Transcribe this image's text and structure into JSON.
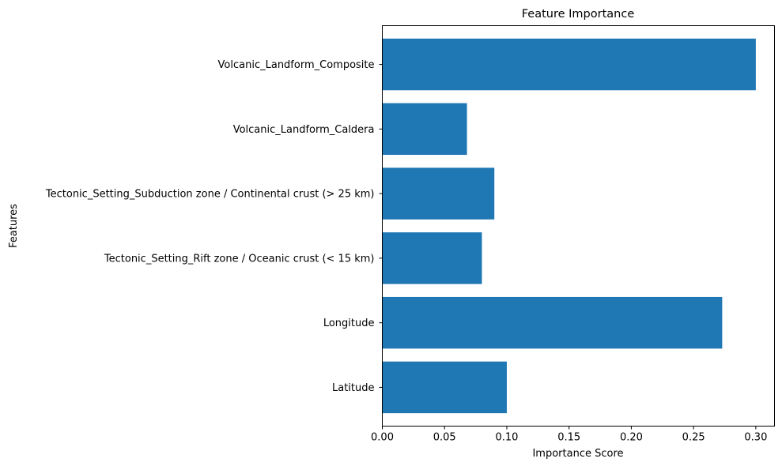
{
  "chart_data": {
    "type": "bar",
    "orientation": "horizontal",
    "title": "Feature Importance",
    "xlabel": "Importance Score",
    "ylabel": "Features",
    "categories": [
      "Latitude",
      "Longitude",
      "Tectonic_Setting_Rift zone / Oceanic crust (< 15 km)",
      "Tectonic_Setting_Subduction zone / Continental crust (> 25 km)",
      "Volcanic_Landform_Caldera",
      "Volcanic_Landform_Composite"
    ],
    "values": [
      0.1,
      0.273,
      0.08,
      0.09,
      0.068,
      0.3
    ],
    "xlim": [
      0,
      0.3
    ],
    "xticks": [
      0.0,
      0.05,
      0.1,
      0.15,
      0.2,
      0.25,
      0.3
    ],
    "xtick_labels": [
      "0.00",
      "0.05",
      "0.10",
      "0.15",
      "0.20",
      "0.25",
      "0.30"
    ],
    "bar_color": "#1f77b4",
    "grid": false
  }
}
